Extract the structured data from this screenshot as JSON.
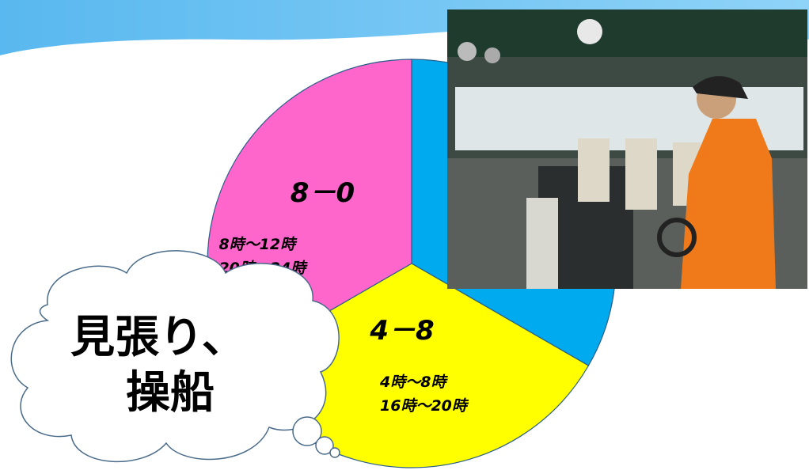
{
  "chart_data": {
    "type": "pie",
    "categories": [
      null,
      "4－8",
      "8－0"
    ],
    "values": [
      4,
      4,
      4
    ],
    "colors": [
      "#00aaee",
      "#ffff00",
      "#ff66cc"
    ],
    "hour_labels": [
      null,
      [
        "4時～8時",
        "16時～20時"
      ],
      [
        "8時～12時",
        "20時～24時"
      ]
    ]
  },
  "callout": {
    "lines": [
      "見張り、",
      "操船"
    ]
  }
}
